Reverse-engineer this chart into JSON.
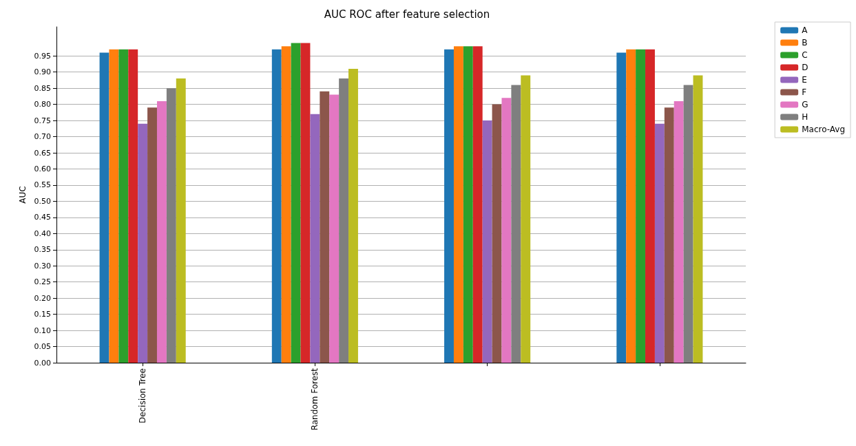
{
  "chart_data": {
    "type": "bar",
    "title": "AUC ROC after feature selection",
    "ylabel": "AUC",
    "categories": [
      "Decision Tree",
      "Random Forest",
      null,
      null
    ],
    "series": [
      {
        "name": "A",
        "color": "#1f77b4",
        "values": [
          0.96,
          0.97,
          0.97,
          0.96
        ]
      },
      {
        "name": "B",
        "color": "#ff7f0e",
        "values": [
          0.97,
          0.98,
          0.98,
          0.97
        ]
      },
      {
        "name": "C",
        "color": "#2ca02c",
        "values": [
          0.97,
          0.99,
          0.98,
          0.97
        ]
      },
      {
        "name": "D",
        "color": "#d62728",
        "values": [
          0.97,
          0.99,
          0.98,
          0.97
        ]
      },
      {
        "name": "E",
        "color": "#9467bd",
        "values": [
          0.74,
          0.77,
          0.75,
          0.74
        ]
      },
      {
        "name": "F",
        "color": "#8c564b",
        "values": [
          0.79,
          0.84,
          0.8,
          0.79
        ]
      },
      {
        "name": "G",
        "color": "#e377c2",
        "values": [
          0.81,
          0.83,
          0.82,
          0.81
        ]
      },
      {
        "name": "H",
        "color": "#7f7f7f",
        "values": [
          0.85,
          0.88,
          0.86,
          0.86
        ]
      },
      {
        "name": "Macro-Avg",
        "color": "#bcbd22",
        "values": [
          0.88,
          0.91,
          0.89,
          0.89
        ]
      }
    ],
    "ylim": [
      0,
      1.04
    ],
    "yticks": [
      {
        "value": 0,
        "label": "0.00"
      },
      {
        "value": 0.05,
        "label": "0.05"
      },
      {
        "value": 0.1,
        "label": "0.10"
      },
      {
        "value": 0.15,
        "label": "0.15"
      },
      {
        "value": 0.2,
        "label": "0.20"
      },
      {
        "value": 0.25,
        "label": "0.25"
      },
      {
        "value": 0.3,
        "label": "0.30"
      },
      {
        "value": 0.35,
        "label": "0.35"
      },
      {
        "value": 0.4,
        "label": "0.40"
      },
      {
        "value": 0.45,
        "label": "0.45"
      },
      {
        "value": 0.5,
        "label": "0.50"
      },
      {
        "value": 0.55,
        "label": "0.55"
      },
      {
        "value": 0.6,
        "label": "0.60"
      },
      {
        "value": 0.65,
        "label": "0.65"
      },
      {
        "value": 0.7,
        "label": "0.70"
      },
      {
        "value": 0.75,
        "label": "0.75"
      },
      {
        "value": 0.8,
        "label": "0.80"
      },
      {
        "value": 0.85,
        "label": "0.85"
      },
      {
        "value": 0.9,
        "label": "0.90"
      },
      {
        "value": 0.95,
        "label": "0.95"
      }
    ],
    "grid": "y",
    "legend": "top right"
  }
}
